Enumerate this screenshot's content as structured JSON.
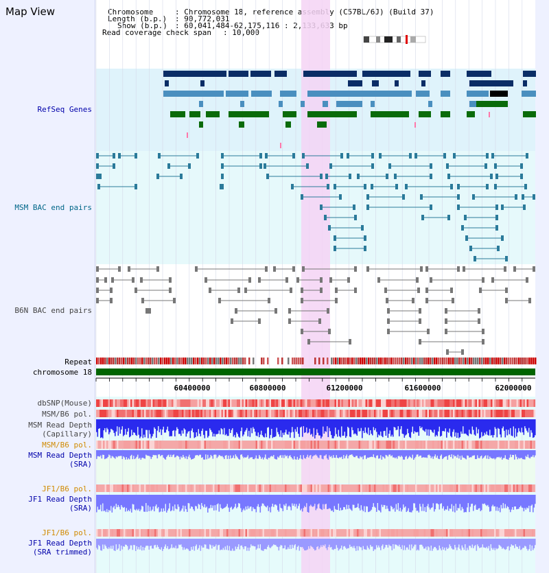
{
  "page_title": "Map View",
  "header": {
    "chromosome_key": "Chromosome",
    "chromosome_val": ": Chromosome 18, reference assembly (C57BL/6J) (Build 37)",
    "length_key": "Length (b.p.)",
    "length_val": ": 90,772,031",
    "show_key": "Show (b.p.)",
    "show_val": ": 60,041,484-62,175,116 : 2,133,633 bp",
    "span_key": "Read coverage check span",
    "span_val": ": 10,000"
  },
  "tracks": {
    "refseq": "RefSeq Genes",
    "msm_bac": "MSM BAC end pairs",
    "b6n_bac": "B6N BAC end pairs",
    "repeat": "Repeat",
    "chrom": "chromosome 18",
    "dbsnp": "dbSNP(Mouse)",
    "msm_pol": "MSM/B6 pol.",
    "msm_depth_cap_1": "MSM Read Depth",
    "msm_depth_cap_2": "(Capillary)",
    "msm_pol_sra": "MSM/B6 pol.",
    "msm_depth_sra_1": "MSM Read Depth",
    "msm_depth_sra_2": "(SRA)",
    "jf1_pol": "JF1/B6 pol.",
    "jf1_depth_1": "JF1 Read Depth",
    "jf1_depth_2": "(SRA)",
    "jf1_pol_trim": "JF1/B6 pol.",
    "jf1_trim_1": "JF1 Read Depth",
    "jf1_trim_2": "(SRA trimmed)"
  },
  "axis_ticks": [
    "60400000",
    "60800000",
    "61200000",
    "61600000",
    "62000000"
  ],
  "colors": {
    "refseq_bg": "#dff3fb",
    "msm_bg": "#e6f9fb",
    "highlight": "#f5d3f5",
    "gene_navy": "#0b2d66",
    "gene_steel": "#4a8fbf",
    "gene_green": "#0a6b0a",
    "bac_teal": "#2a7a9a",
    "bac_gray": "#777777",
    "chrom_green": "#006400",
    "depth_blue": "#2a2aee",
    "depth_light": "#7777ff"
  }
}
